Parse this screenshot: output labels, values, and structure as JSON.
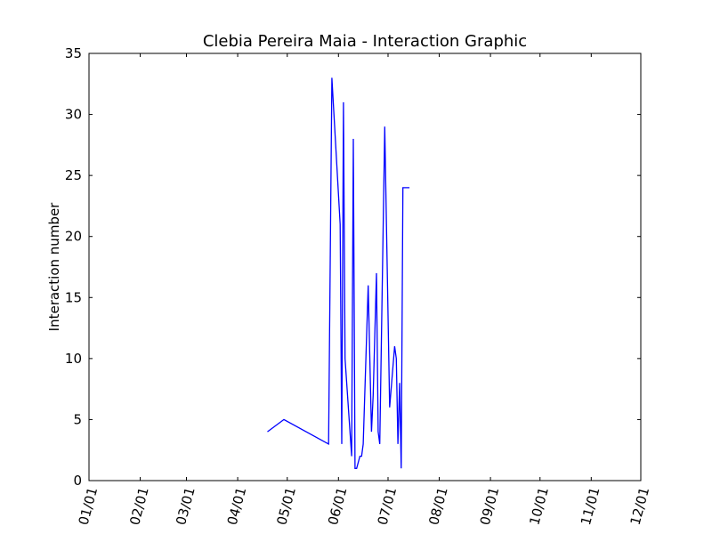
{
  "chart_data": {
    "type": "line",
    "title": "Clebia Pereira Maia - Interaction Graphic",
    "xlabel": "",
    "ylabel": "Interaction number",
    "x_axis": {
      "kind": "date",
      "range": [
        "01/01",
        "12/01"
      ],
      "tick_labels": [
        "01/01",
        "02/01",
        "03/01",
        "04/01",
        "05/01",
        "06/01",
        "07/01",
        "08/01",
        "09/01",
        "10/01",
        "11/01",
        "12/01"
      ]
    },
    "y_axis": {
      "range": [
        0,
        35
      ],
      "ticks": [
        0,
        5,
        10,
        15,
        20,
        25,
        30,
        35
      ]
    },
    "grid": false,
    "legend": "none",
    "colors": {
      "line": "#0000ff",
      "axes": "#000000",
      "background": "#ffffff"
    },
    "series": [
      {
        "x": [
          "04/19",
          "04/29",
          "05/26",
          "05/28",
          "06/02",
          "06/03",
          "06/04",
          "06/05",
          "06/09",
          "06/10",
          "06/11",
          "06/12",
          "06/14",
          "06/15",
          "06/16",
          "06/19",
          "06/21",
          "06/22",
          "06/24",
          "06/25",
          "06/26",
          "06/29",
          "07/02",
          "07/05",
          "07/06",
          "07/07",
          "07/08",
          "07/09",
          "07/10",
          "07/11",
          "07/12",
          "07/13",
          "07/14"
        ],
        "values": [
          4,
          5,
          3,
          33,
          21,
          3,
          31,
          10,
          2,
          28,
          1,
          1,
          2,
          2,
          3,
          16,
          4,
          7,
          17,
          4,
          3,
          29,
          6,
          11,
          10,
          3,
          8,
          1,
          24,
          24,
          24,
          24,
          24
        ]
      }
    ]
  }
}
